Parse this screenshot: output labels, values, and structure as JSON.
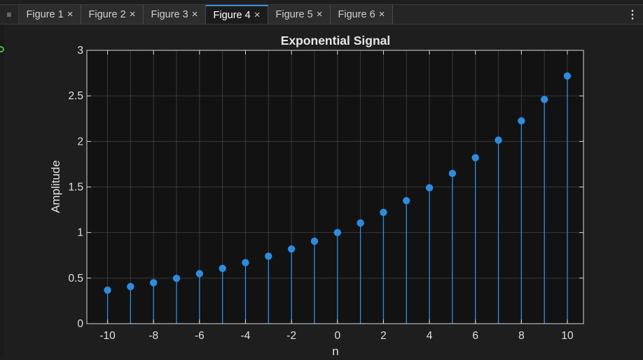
{
  "tabs": [
    {
      "label": "Figure 1",
      "active": false
    },
    {
      "label": "Figure 2",
      "active": false
    },
    {
      "label": "Figure 3",
      "active": false
    },
    {
      "label": "Figure 4",
      "active": true
    },
    {
      "label": "Figure 5",
      "active": false
    },
    {
      "label": "Figure 6",
      "active": false
    }
  ],
  "icons": {
    "menu": "hamburger-icon",
    "close": "close-icon",
    "more": "kebab-menu-icon"
  },
  "close_glyph": "×",
  "colors": {
    "accent": "#3b8fd9",
    "stem": "#2d8ce0",
    "axes_bg": "#121212",
    "grid": "#5a5a5a"
  },
  "chart_data": {
    "type": "stem",
    "title": "Exponential Signal",
    "xlabel": "n",
    "ylabel": "Amplitude",
    "xlim": [
      -10.9,
      10.7
    ],
    "ylim": [
      0,
      3
    ],
    "grid": true,
    "x_ticks": [
      -10,
      -8,
      -6,
      -4,
      -2,
      0,
      2,
      4,
      6,
      8,
      10
    ],
    "x_tick_labels": [
      "-10",
      "-8",
      "-6",
      "-4",
      "-2",
      "0",
      "2",
      "4",
      "6",
      "8",
      "10"
    ],
    "y_ticks": [
      0,
      0.5,
      1,
      1.5,
      2,
      2.5,
      3
    ],
    "y_tick_labels": [
      "0",
      "0.5",
      "1",
      "1.5",
      "2",
      "2.5",
      "3"
    ],
    "x": [
      -10,
      -9,
      -8,
      -7,
      -6,
      -5,
      -4,
      -3,
      -2,
      -1,
      0,
      1,
      2,
      3,
      4,
      5,
      6,
      7,
      8,
      9,
      10
    ],
    "y": [
      0.368,
      0.407,
      0.449,
      0.497,
      0.549,
      0.607,
      0.67,
      0.741,
      0.819,
      0.905,
      1.0,
      1.105,
      1.221,
      1.35,
      1.492,
      1.649,
      1.822,
      2.014,
      2.226,
      2.46,
      2.718
    ]
  }
}
